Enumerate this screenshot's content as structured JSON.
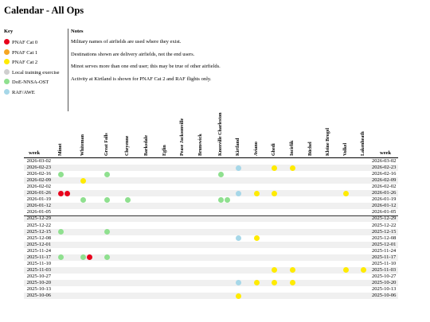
{
  "page_title": "Calendar - All Ops",
  "key": {
    "heading": "Key",
    "items": [
      {
        "label": "PNAF Cat 0",
        "color": "#e8001c"
      },
      {
        "label": "PNAF Cat 1",
        "color": "#f5a623"
      },
      {
        "label": "PNAF Cat 2",
        "color": "#ffeb00"
      },
      {
        "label": "Local training exercise",
        "color": "#cfcfcf"
      },
      {
        "label": "DoE-NNSA-OST",
        "color": "#8fe08f"
      },
      {
        "label": "RAF/AWE",
        "color": "#a6d7e8"
      }
    ]
  },
  "notes": {
    "heading": "Notes",
    "items": [
      "Military names of airfields are used where they exist.",
      "Destinations shown are delivery airfields, not the end users.",
      "Minot serves more than one end user; this may be true of other airfields.",
      "Activity at Kirtland is shown for PNAF Cat 2 and RAF flights only."
    ]
  },
  "calendar": {
    "week_label": "week",
    "columns": [
      "Minot",
      "Whiteman",
      "Great Falls",
      "Cheyenne",
      "Barksdale",
      "Eglin",
      "Pease Jacksonville",
      "Brunswick",
      "Knoxville Charleston",
      "Kirtland",
      "Aviano",
      "Ghedi",
      "Incirlik",
      "Büchel",
      "Kleine Brogel",
      "Volkel",
      "Lakenheath"
    ],
    "weeks": [
      "2026-03-02",
      "2026-02-23",
      "2026-02-16",
      "2026-02-09",
      "2026-02-02",
      "2026-01-26",
      "2026-01-19",
      "2026-01-12",
      "2026-01-05",
      "2025-12-29",
      "2025-12-22",
      "2025-12-15",
      "2025-12-08",
      "2025-12-01",
      "2025-11-24",
      "2025-11-17",
      "2025-11-10",
      "2025-11-03",
      "2025-10-27",
      "2025-10-20",
      "2025-10-13",
      "2025-10-06"
    ],
    "year_separator_after": "2026-01-05",
    "events": [
      {
        "week": "2026-02-23",
        "col": "Kirtland",
        "cat": "RAF/AWE"
      },
      {
        "week": "2026-02-23",
        "col": "Ghedi",
        "cat": "PNAF Cat 2"
      },
      {
        "week": "2026-02-23",
        "col": "Incirlik",
        "cat": "PNAF Cat 2"
      },
      {
        "week": "2026-02-16",
        "col": "Minot",
        "cat": "DoE-NNSA-OST"
      },
      {
        "week": "2026-02-16",
        "col": "Great Falls",
        "cat": "DoE-NNSA-OST"
      },
      {
        "week": "2026-02-16",
        "col": "Knoxville Charleston",
        "cat": "DoE-NNSA-OST"
      },
      {
        "week": "2026-02-09",
        "col": "Whiteman",
        "cat": "PNAF Cat 2"
      },
      {
        "week": "2026-01-26",
        "col": "Minot",
        "cat": "PNAF Cat 0"
      },
      {
        "week": "2026-01-26",
        "col": "Minot",
        "cat": "PNAF Cat 0"
      },
      {
        "week": "2026-01-26",
        "col": "Kirtland",
        "cat": "RAF/AWE"
      },
      {
        "week": "2026-01-26",
        "col": "Aviano",
        "cat": "PNAF Cat 2"
      },
      {
        "week": "2026-01-26",
        "col": "Ghedi",
        "cat": "PNAF Cat 2"
      },
      {
        "week": "2026-01-26",
        "col": "Volkel",
        "cat": "PNAF Cat 2"
      },
      {
        "week": "2026-01-19",
        "col": "Whiteman",
        "cat": "DoE-NNSA-OST"
      },
      {
        "week": "2026-01-19",
        "col": "Great Falls",
        "cat": "DoE-NNSA-OST"
      },
      {
        "week": "2026-01-19",
        "col": "Cheyenne",
        "cat": "DoE-NNSA-OST"
      },
      {
        "week": "2026-01-19",
        "col": "Knoxville Charleston",
        "cat": "DoE-NNSA-OST"
      },
      {
        "week": "2026-01-19",
        "col": "Knoxville Charleston",
        "cat": "DoE-NNSA-OST"
      },
      {
        "week": "2025-12-15",
        "col": "Minot",
        "cat": "DoE-NNSA-OST"
      },
      {
        "week": "2025-12-15",
        "col": "Great Falls",
        "cat": "DoE-NNSA-OST"
      },
      {
        "week": "2025-12-08",
        "col": "Kirtland",
        "cat": "RAF/AWE"
      },
      {
        "week": "2025-12-08",
        "col": "Aviano",
        "cat": "PNAF Cat 2"
      },
      {
        "week": "2025-11-17",
        "col": "Minot",
        "cat": "DoE-NNSA-OST"
      },
      {
        "week": "2025-11-17",
        "col": "Whiteman",
        "cat": "DoE-NNSA-OST"
      },
      {
        "week": "2025-11-17",
        "col": "Whiteman",
        "cat": "PNAF Cat 0"
      },
      {
        "week": "2025-11-17",
        "col": "Great Falls",
        "cat": "DoE-NNSA-OST"
      },
      {
        "week": "2025-11-03",
        "col": "Ghedi",
        "cat": "PNAF Cat 2"
      },
      {
        "week": "2025-11-03",
        "col": "Incirlik",
        "cat": "PNAF Cat 2"
      },
      {
        "week": "2025-11-03",
        "col": "Volkel",
        "cat": "PNAF Cat 2"
      },
      {
        "week": "2025-11-03",
        "col": "Lakenheath",
        "cat": "PNAF Cat 2"
      },
      {
        "week": "2025-10-20",
        "col": "Kirtland",
        "cat": "RAF/AWE"
      },
      {
        "week": "2025-10-20",
        "col": "Aviano",
        "cat": "PNAF Cat 2"
      },
      {
        "week": "2025-10-20",
        "col": "Ghedi",
        "cat": "PNAF Cat 2"
      },
      {
        "week": "2025-10-20",
        "col": "Incirlik",
        "cat": "PNAF Cat 2"
      },
      {
        "week": "2025-10-06",
        "col": "Kirtland",
        "cat": "PNAF Cat 2"
      }
    ]
  }
}
